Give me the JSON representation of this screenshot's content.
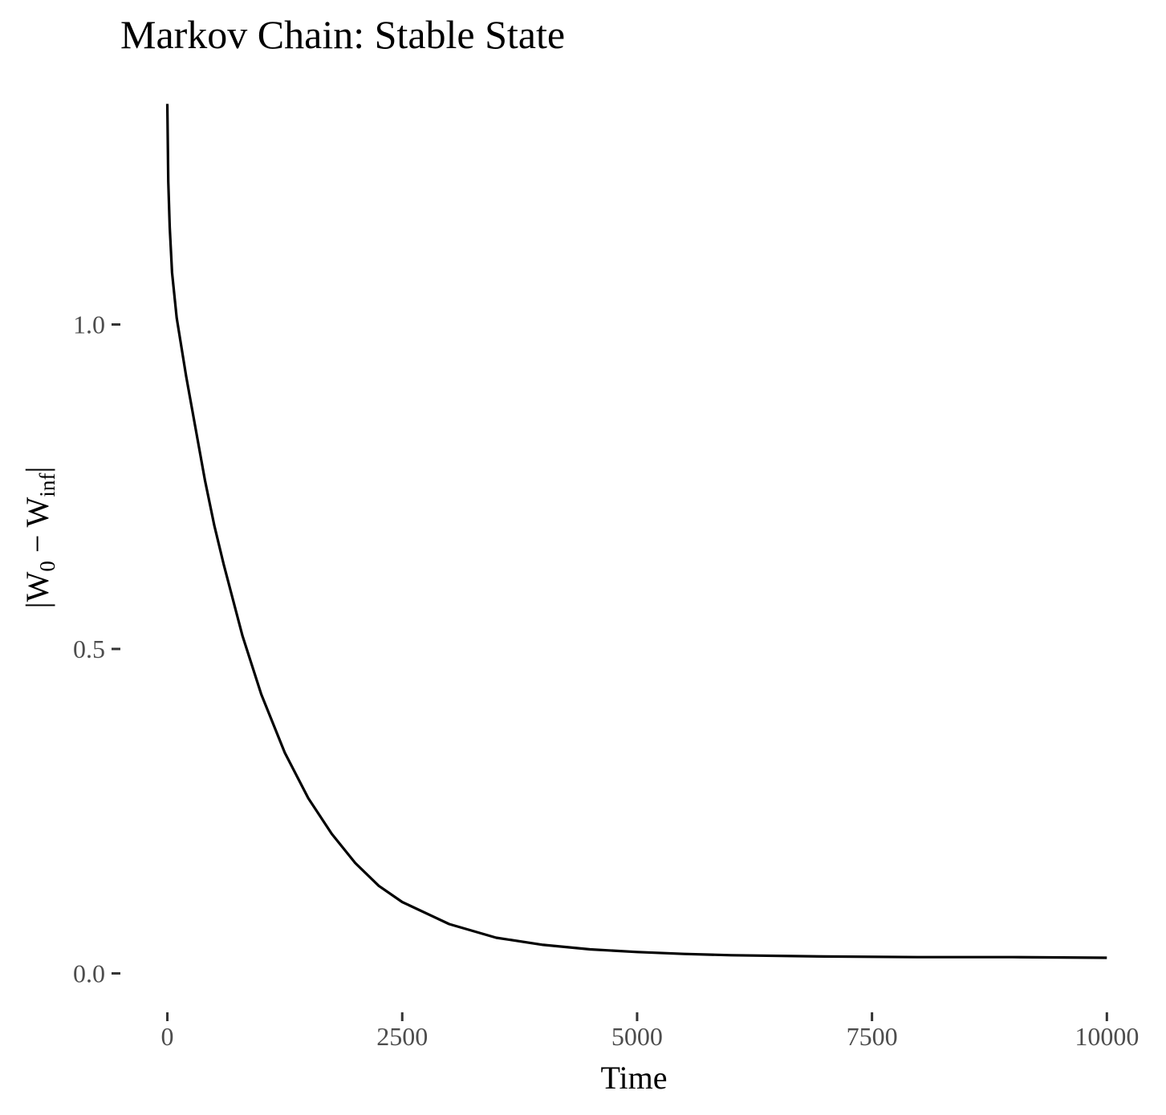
{
  "chart_data": {
    "type": "line",
    "title": "Markov Chain: Stable State",
    "xlabel": "Time",
    "ylabel": {
      "full": "|W_0 − W_inf|",
      "open": "|W",
      "sub1": "0",
      "mid": " − W",
      "sub2": "inf",
      "close": "|"
    },
    "xlim": [
      -500,
      10450
    ],
    "ylim": [
      -0.06,
      1.395
    ],
    "x_ticks": [
      0,
      2500,
      5000,
      7500,
      10000
    ],
    "x_tick_labels": [
      "0",
      "2500",
      "5000",
      "7500",
      "10000"
    ],
    "y_ticks": [
      0.0,
      0.5,
      1.0
    ],
    "y_tick_labels": [
      "0.0",
      "0.5",
      "1.0"
    ],
    "grid": false,
    "legend": "none",
    "series": [
      {
        "name": "|W0 - Winf|",
        "color": "#000000",
        "x": [
          0,
          10,
          25,
          50,
          100,
          200,
          300,
          400,
          500,
          600,
          800,
          1000,
          1250,
          1500,
          1750,
          2000,
          2250,
          2500,
          3000,
          3500,
          4000,
          4500,
          5000,
          5500,
          6000,
          7000,
          8000,
          9000,
          10000
        ],
        "y": [
          1.34,
          1.22,
          1.15,
          1.08,
          1.01,
          0.92,
          0.84,
          0.76,
          0.69,
          0.63,
          0.52,
          0.43,
          0.34,
          0.27,
          0.215,
          0.17,
          0.135,
          0.11,
          0.076,
          0.055,
          0.044,
          0.037,
          0.033,
          0.03,
          0.028,
          0.026,
          0.025,
          0.025,
          0.024
        ]
      }
    ]
  }
}
